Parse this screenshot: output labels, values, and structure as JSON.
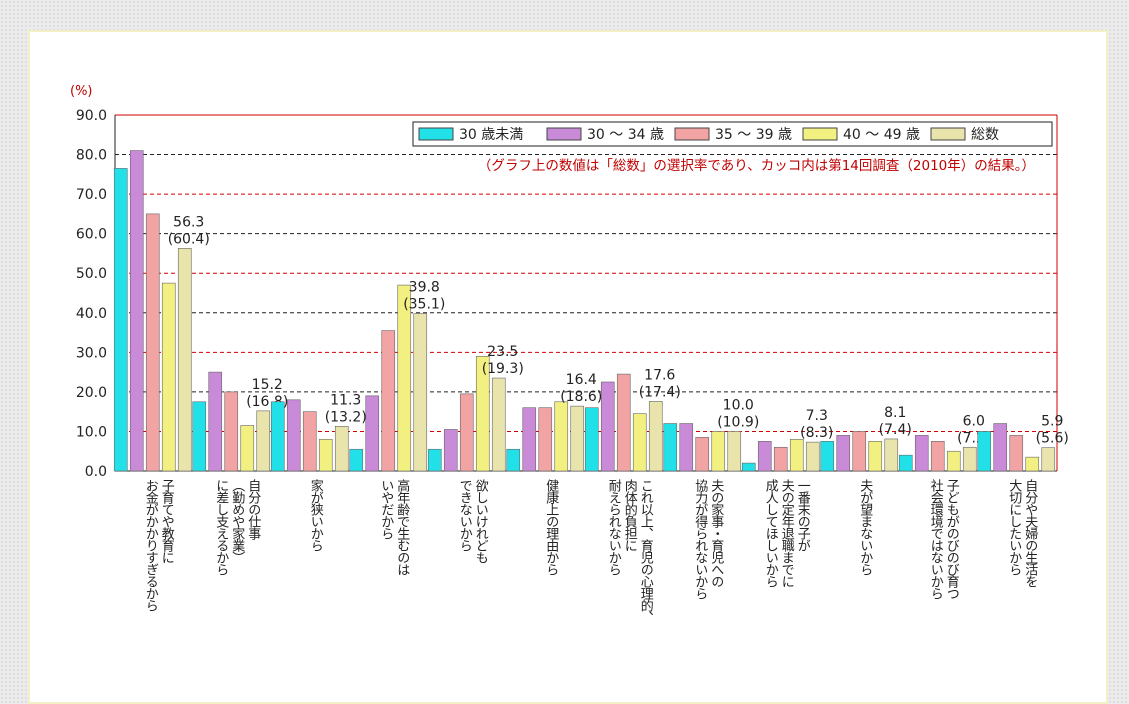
{
  "chart_data": {
    "type": "bar",
    "y_unit": "(%)",
    "note": "（グラフ上の数値は「総数」の選択率であり、カッコ内は第14回調査（2010年）の結果。）",
    "categories": [
      [
        "子育てや教育に",
        "お金がかかりすぎるから"
      ],
      [
        "自分の仕事",
        "（勤めや家業）",
        "に差し支えるから"
      ],
      [
        "家が狭いから"
      ],
      [
        "高年齢で生むのは",
        "いやだから"
      ],
      [
        "欲しいけれども",
        "できないから"
      ],
      [
        "健康上の理由から"
      ],
      [
        "これ以上、育児の心理的、",
        "肉体的負担に",
        "耐えられないから"
      ],
      [
        "夫の家事・育児への",
        "協力が得られないから"
      ],
      [
        "一番末の子が",
        "夫の定年退職までに",
        "成人してほしいから"
      ],
      [
        "夫が望まないから"
      ],
      [
        "子どもがのびのび育つ",
        "社会環境ではないから"
      ],
      [
        "自分や夫婦の生活を",
        "大切にしたいから"
      ]
    ],
    "series": [
      {
        "name": "30 歳未満",
        "color": "#22e0e8",
        "values": [
          76.5,
          17.5,
          17.5,
          5.5,
          5.5,
          5.5,
          16,
          12,
          2,
          7.5,
          4,
          10
        ]
      },
      {
        "name": "30 ～ 34 歳",
        "color": "#c98ad8",
        "values": [
          81,
          25,
          18,
          19,
          10.5,
          16,
          22.5,
          12,
          7.5,
          9,
          9,
          12
        ]
      },
      {
        "name": "35 ～ 39 歳",
        "color": "#f2a3a3",
        "values": [
          65,
          20,
          15,
          35.5,
          19.5,
          16,
          24.5,
          8.5,
          6,
          10,
          7.5,
          9
        ]
      },
      {
        "name": "40 ～ 49 歳",
        "color": "#f2f080",
        "values": [
          47.5,
          11.5,
          8,
          47,
          29,
          17.5,
          14.5,
          10,
          8,
          7.5,
          5,
          3.5
        ]
      },
      {
        "name": "総数",
        "color": "#e9e4ac",
        "values": [
          56.3,
          15.2,
          11.3,
          39.8,
          23.5,
          16.4,
          17.6,
          10,
          7.3,
          8.1,
          6,
          5.9
        ],
        "value_labels": [
          "56.3",
          "15.2",
          "11.3",
          "39.8",
          "23.5",
          "16.4",
          "17.6",
          "10.0",
          "7.3",
          "8.1",
          "6.0",
          "5.9"
        ],
        "previous_labels": [
          "(60.4)",
          "(16.8)",
          "(13.2)",
          "(35.1)",
          "(19.3)",
          "(18.6)",
          "(17.4)",
          "(10.9)",
          "(8.3)",
          "(7.4)",
          "(7.2)",
          "(5.6)"
        ]
      }
    ],
    "ylim": [
      0,
      90
    ],
    "yticks": [
      {
        "value": 0,
        "label": "0.0"
      },
      {
        "value": 10,
        "label": "10.0"
      },
      {
        "value": 20,
        "label": "20.0"
      },
      {
        "value": 30,
        "label": "30.0"
      },
      {
        "value": 40,
        "label": "40.0"
      },
      {
        "value": 50,
        "label": "50.0"
      },
      {
        "value": 60,
        "label": "60.0"
      },
      {
        "value": 70,
        "label": "70.0"
      },
      {
        "value": 80,
        "label": "80.0"
      },
      {
        "value": 90,
        "label": "90.0"
      }
    ],
    "grid": true,
    "legend": "upper right"
  }
}
